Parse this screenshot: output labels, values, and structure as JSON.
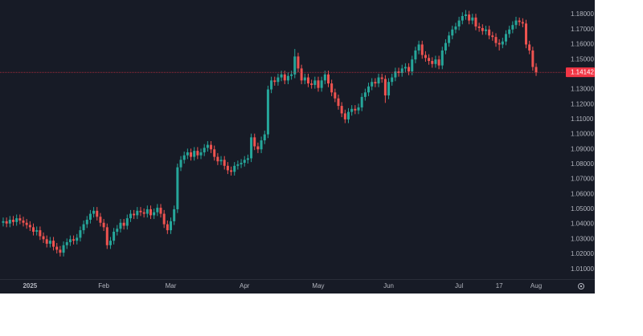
{
  "chart_data": {
    "type": "candlestick",
    "categories": [
      null,
      null,
      null,
      null,
      null,
      null,
      null,
      null,
      "2025",
      null,
      null,
      null,
      null,
      null,
      null,
      null,
      null,
      null,
      null,
      null,
      null,
      null,
      null,
      null,
      null,
      null,
      null,
      null,
      null,
      null,
      "Feb",
      null,
      null,
      null,
      null,
      null,
      null,
      null,
      null,
      null,
      null,
      null,
      null,
      null,
      null,
      null,
      null,
      null,
      null,
      null,
      "Mar",
      null,
      null,
      null,
      null,
      null,
      null,
      null,
      null,
      null,
      null,
      null,
      null,
      null,
      null,
      null,
      null,
      null,
      null,
      null,
      null,
      null,
      "Apr",
      null,
      null,
      null,
      null,
      null,
      null,
      null,
      null,
      null,
      null,
      null,
      null,
      null,
      null,
      null,
      null,
      null,
      null,
      null,
      null,
      null,
      "May",
      null,
      null,
      null,
      null,
      null,
      null,
      null,
      null,
      null,
      null,
      null,
      null,
      null,
      null,
      null,
      null,
      null,
      null,
      null,
      null,
      "Jun",
      null,
      null,
      null,
      null,
      null,
      null,
      null,
      null,
      null,
      null,
      null,
      null,
      null,
      null,
      null,
      null,
      null,
      null,
      null,
      null,
      "Jul",
      null,
      null,
      null,
      null,
      null,
      null,
      null,
      null,
      null,
      null,
      null,
      "17",
      null,
      null,
      null,
      null,
      null,
      null,
      null,
      null,
      null,
      null,
      "Aug"
    ],
    "open": [
      1.041,
      1.042,
      1.0405,
      1.043,
      1.0415,
      1.044,
      1.0425,
      1.041,
      1.0395,
      1.038,
      1.035,
      1.036,
      1.032,
      1.03,
      1.027,
      1.029,
      1.025,
      1.023,
      1.021,
      1.026,
      1.028,
      1.03,
      1.029,
      1.031,
      1.036,
      1.04,
      1.043,
      1.047,
      1.049,
      1.045,
      1.041,
      1.038,
      1.026,
      1.029,
      1.035,
      1.037,
      1.041,
      1.039,
      1.044,
      1.047,
      1.046,
      1.049,
      1.048,
      1.047,
      1.05,
      1.046,
      1.048,
      1.051,
      1.047,
      1.04,
      1.036,
      1.042,
      1.05,
      1.078,
      1.083,
      1.086,
      1.088,
      1.085,
      1.089,
      1.086,
      1.088,
      1.091,
      1.093,
      1.09,
      1.085,
      1.082,
      1.083,
      1.079,
      1.076,
      1.075,
      1.079,
      1.08,
      1.081,
      1.083,
      1.084,
      1.098,
      1.092,
      1.09,
      1.096,
      1.1,
      1.13,
      1.136,
      1.135,
      1.138,
      1.14,
      1.136,
      1.139,
      1.14,
      1.152,
      1.144,
      1.136,
      1.138,
      1.134,
      1.133,
      1.136,
      1.131,
      1.136,
      1.14,
      1.134,
      1.128,
      1.124,
      1.119,
      1.114,
      1.11,
      1.115,
      1.117,
      1.116,
      1.118,
      1.125,
      1.128,
      1.132,
      1.135,
      1.134,
      1.138,
      1.137,
      1.126,
      1.135,
      1.138,
      1.142,
      1.141,
      1.144,
      1.145,
      1.142,
      1.15,
      1.156,
      1.16,
      1.153,
      1.151,
      1.149,
      1.147,
      1.15,
      1.146,
      1.156,
      1.161,
      1.166,
      1.17,
      1.172,
      1.176,
      1.179,
      1.18,
      1.176,
      1.178,
      1.172,
      1.171,
      1.169,
      1.17,
      1.166,
      1.165,
      1.161,
      1.16,
      1.162,
      1.167,
      1.17,
      1.173,
      1.176,
      1.175,
      1.174,
      1.16,
      1.156,
      1.145
    ],
    "high": [
      1.0445,
      1.0445,
      1.0455,
      1.0455,
      1.0465,
      1.0465,
      1.045,
      1.0435,
      1.042,
      1.0405,
      1.0385,
      1.0385,
      1.0345,
      1.0325,
      1.0315,
      1.0315,
      1.0275,
      1.0255,
      1.0285,
      1.0305,
      1.0325,
      1.0325,
      1.0335,
      1.0385,
      1.0425,
      1.0455,
      1.0495,
      1.0515,
      1.0515,
      1.0475,
      1.0435,
      1.0405,
      1.0315,
      1.0375,
      1.0395,
      1.0435,
      1.0435,
      1.0465,
      1.0495,
      1.0495,
      1.0515,
      1.0515,
      1.0505,
      1.0525,
      1.0525,
      1.0505,
      1.0535,
      1.0535,
      1.0495,
      1.0425,
      1.0445,
      1.0525,
      1.0805,
      1.0855,
      1.0885,
      1.0905,
      1.0905,
      1.0915,
      1.0915,
      1.0905,
      1.0935,
      1.0955,
      1.0955,
      1.0925,
      1.0875,
      1.0855,
      1.0855,
      1.0815,
      1.0785,
      1.0815,
      1.0825,
      1.0835,
      1.0855,
      1.0865,
      1.1005,
      1.1005,
      1.0945,
      1.0985,
      1.1025,
      1.1325,
      1.1385,
      1.1385,
      1.1405,
      1.1425,
      1.1425,
      1.1415,
      1.1425,
      1.157,
      1.1545,
      1.1465,
      1.1405,
      1.1405,
      1.1365,
      1.1385,
      1.1385,
      1.1385,
      1.1425,
      1.1425,
      1.1365,
      1.1305,
      1.1265,
      1.1215,
      1.1165,
      1.1175,
      1.1195,
      1.1195,
      1.1205,
      1.1275,
      1.1305,
      1.1345,
      1.1375,
      1.1375,
      1.1405,
      1.1405,
      1.1395,
      1.1375,
      1.1405,
      1.1445,
      1.1445,
      1.1465,
      1.1475,
      1.1475,
      1.1525,
      1.1585,
      1.1625,
      1.1625,
      1.1555,
      1.1535,
      1.1515,
      1.1525,
      1.1525,
      1.1585,
      1.1635,
      1.1685,
      1.1725,
      1.1745,
      1.1785,
      1.1815,
      1.183,
      1.1825,
      1.1805,
      1.1805,
      1.1745,
      1.1735,
      1.1725,
      1.1725,
      1.1685,
      1.1675,
      1.1635,
      1.1645,
      1.1695,
      1.1725,
      1.1755,
      1.1785,
      1.178,
      1.1775,
      1.1765,
      1.1625,
      1.1585,
      1.1475
    ],
    "low": [
      1.0385,
      1.038,
      1.038,
      1.039,
      1.039,
      1.04,
      1.0385,
      1.037,
      1.0355,
      1.0325,
      1.0325,
      1.0295,
      1.0275,
      1.0245,
      1.0245,
      1.0225,
      1.0205,
      1.0185,
      1.0185,
      1.0235,
      1.0255,
      1.0265,
      1.0265,
      1.0285,
      1.0335,
      1.0375,
      1.0405,
      1.0445,
      1.0425,
      1.0385,
      1.0355,
      1.0235,
      1.0235,
      1.0265,
      1.0325,
      1.0345,
      1.0365,
      1.0365,
      1.0415,
      1.0435,
      1.0435,
      1.0455,
      1.0445,
      1.0445,
      1.0435,
      1.0435,
      1.0455,
      1.0445,
      1.0375,
      1.0335,
      1.0335,
      1.0395,
      1.0475,
      1.0755,
      1.0805,
      1.0835,
      1.0825,
      1.0825,
      1.0835,
      1.0835,
      1.0855,
      1.0885,
      1.0875,
      1.0825,
      1.0795,
      1.0795,
      1.0765,
      1.0735,
      1.0725,
      1.0725,
      1.0765,
      1.0775,
      1.0785,
      1.0805,
      1.0815,
      1.0895,
      1.0875,
      1.0875,
      1.0935,
      1.0975,
      1.1275,
      1.1325,
      1.1325,
      1.1355,
      1.1335,
      1.1335,
      1.1365,
      1.1375,
      1.1415,
      1.1335,
      1.1335,
      1.1315,
      1.1305,
      1.1305,
      1.1285,
      1.1285,
      1.1335,
      1.1315,
      1.1255,
      1.1215,
      1.1165,
      1.1115,
      1.1075,
      1.1075,
      1.1125,
      1.1135,
      1.1135,
      1.1155,
      1.1225,
      1.1255,
      1.1295,
      1.1315,
      1.1315,
      1.1345,
      1.121,
      1.1235,
      1.1325,
      1.1355,
      1.1385,
      1.1385,
      1.1415,
      1.1395,
      1.1395,
      1.1475,
      1.1535,
      1.1505,
      1.1485,
      1.1465,
      1.1445,
      1.1445,
      1.1435,
      1.1435,
      1.1535,
      1.1585,
      1.1635,
      1.1675,
      1.1695,
      1.1735,
      1.1765,
      1.1735,
      1.1735,
      1.1695,
      1.1685,
      1.1665,
      1.1665,
      1.1635,
      1.1625,
      1.1585,
      1.156,
      1.1575,
      1.1595,
      1.1645,
      1.1675,
      1.1705,
      1.1725,
      1.1715,
      1.1575,
      1.1535,
      1.1425,
      1.139
    ],
    "close": [
      1.042,
      1.0405,
      1.043,
      1.0415,
      1.044,
      1.0425,
      1.041,
      1.0395,
      1.038,
      1.035,
      1.036,
      1.032,
      1.03,
      1.027,
      1.029,
      1.025,
      1.023,
      1.021,
      1.026,
      1.028,
      1.03,
      1.029,
      1.031,
      1.036,
      1.04,
      1.043,
      1.047,
      1.049,
      1.045,
      1.041,
      1.038,
      1.026,
      1.029,
      1.035,
      1.037,
      1.041,
      1.039,
      1.044,
      1.047,
      1.046,
      1.049,
      1.048,
      1.047,
      1.05,
      1.046,
      1.048,
      1.051,
      1.047,
      1.04,
      1.036,
      1.042,
      1.05,
      1.078,
      1.083,
      1.086,
      1.088,
      1.085,
      1.089,
      1.086,
      1.088,
      1.091,
      1.093,
      1.09,
      1.085,
      1.082,
      1.083,
      1.079,
      1.076,
      1.075,
      1.079,
      1.08,
      1.081,
      1.083,
      1.084,
      1.098,
      1.092,
      1.09,
      1.096,
      1.1,
      1.13,
      1.136,
      1.135,
      1.138,
      1.14,
      1.136,
      1.139,
      1.14,
      1.152,
      1.144,
      1.136,
      1.138,
      1.134,
      1.133,
      1.136,
      1.131,
      1.136,
      1.14,
      1.134,
      1.128,
      1.124,
      1.119,
      1.114,
      1.11,
      1.115,
      1.117,
      1.116,
      1.118,
      1.125,
      1.128,
      1.132,
      1.135,
      1.134,
      1.138,
      1.137,
      1.126,
      1.135,
      1.138,
      1.142,
      1.141,
      1.144,
      1.145,
      1.142,
      1.15,
      1.156,
      1.16,
      1.153,
      1.151,
      1.149,
      1.147,
      1.15,
      1.146,
      1.156,
      1.161,
      1.166,
      1.17,
      1.172,
      1.176,
      1.179,
      1.18,
      1.176,
      1.178,
      1.172,
      1.171,
      1.169,
      1.17,
      1.166,
      1.165,
      1.161,
      1.16,
      1.162,
      1.167,
      1.17,
      1.173,
      1.176,
      1.175,
      1.174,
      1.16,
      1.156,
      1.145,
      1.14142
    ],
    "up_color": "#26a69a",
    "down_color": "#ef5350",
    "ylim": [
      1.0034,
      1.1897
    ],
    "yticks": [
      {
        "value": 1.01,
        "label": "1.01000"
      },
      {
        "value": 1.02,
        "label": "1.02000"
      },
      {
        "value": 1.03,
        "label": "1.03000"
      },
      {
        "value": 1.04,
        "label": "1.04000"
      },
      {
        "value": 1.05,
        "label": "1.05000"
      },
      {
        "value": 1.06,
        "label": "1.06000"
      },
      {
        "value": 1.07,
        "label": "1.07000"
      },
      {
        "value": 1.08,
        "label": "1.08000"
      },
      {
        "value": 1.09,
        "label": "1.09000"
      },
      {
        "value": 1.1,
        "label": "1.10000"
      },
      {
        "value": 1.11,
        "label": "1.11000"
      },
      {
        "value": 1.12,
        "label": "1.12000"
      },
      {
        "value": 1.13,
        "label": "1.13000"
      },
      {
        "value": 1.14,
        "label": "1.14000"
      },
      {
        "value": 1.15,
        "label": "1.15000"
      },
      {
        "value": 1.16,
        "label": "1.16000"
      },
      {
        "value": 1.17,
        "label": "1.17000"
      },
      {
        "value": 1.18,
        "label": "1.18000"
      }
    ],
    "grid": false,
    "last_price": 1.14142,
    "last_price_color": "#f23645"
  }
}
